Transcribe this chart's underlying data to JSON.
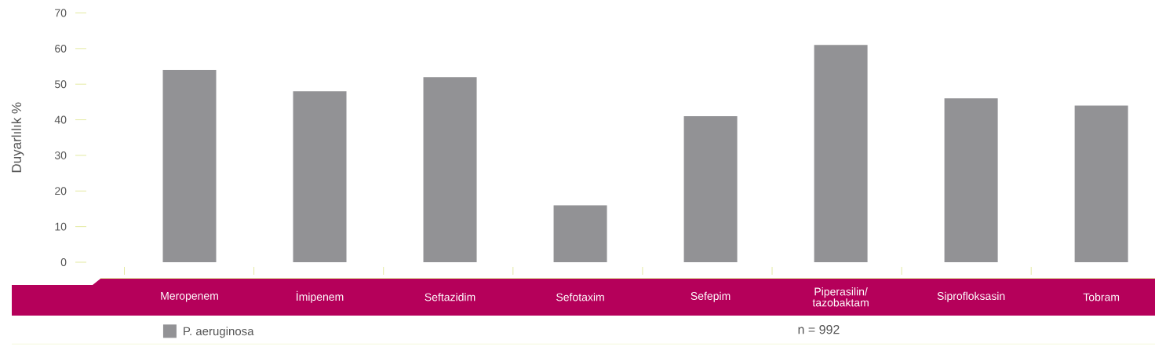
{
  "chart_data": {
    "type": "bar",
    "ylabel": "Duyarlılık %",
    "categories": [
      "Meropenem",
      "İmipenem",
      "Seftazidim",
      "Sefotaxim",
      "Sefepim",
      "Piperasilin/ tazobaktam",
      "Siprofloksasin",
      "Tobram"
    ],
    "series": [
      {
        "name": "P. aeruginosa",
        "color": "#929295",
        "values": [
          54,
          48,
          52,
          16,
          41,
          61,
          46,
          44
        ]
      }
    ],
    "ylim": [
      0,
      70
    ],
    "yticks": [
      0,
      10,
      20,
      30,
      40,
      50,
      60,
      70
    ],
    "legend": "bottom left",
    "annotations": [
      "n = 992"
    ]
  }
}
